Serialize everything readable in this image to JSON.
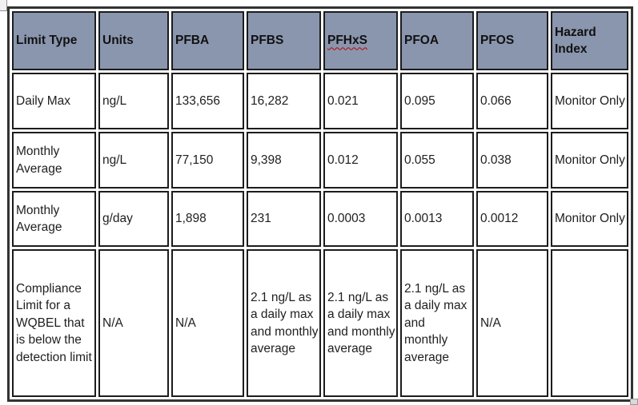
{
  "chart_data": {
    "type": "table",
    "title": "PFAS effluent limits table",
    "columns": [
      {
        "label": "Limit Type"
      },
      {
        "label": "Units"
      },
      {
        "label": "PFBA"
      },
      {
        "label": "PFBS"
      },
      {
        "label": "PFHxS",
        "spellcheck_underline": true
      },
      {
        "label": "PFOA"
      },
      {
        "label": "PFOS"
      },
      {
        "label": "Hazard Index"
      }
    ],
    "rows": [
      [
        "Daily Max",
        "ng/L",
        "133,656",
        "16,282",
        "0.021",
        "0.095",
        "0.066",
        "Monitor Only"
      ],
      [
        "Monthly Average",
        "ng/L",
        "77,150",
        "9,398",
        "0.012",
        "0.055",
        "0.038",
        "Monitor Only"
      ],
      [
        "Monthly Average",
        "g/day",
        "1,898",
        "231",
        "0.0003",
        "0.0013",
        "0.0012",
        "Monitor Only"
      ],
      [
        "Compliance Limit for a WQBEL that is below the detection limit",
        "N/A",
        "N/A",
        "2.1 ng/L as a daily max and monthly average",
        "2.1 ng/L as a daily max and monthly average",
        "2.1 ng/L as a daily max and monthly average",
        "N/A",
        ""
      ]
    ]
  },
  "colors": {
    "header_bg": "#8a96ae",
    "cell_border": "#1c1c1c",
    "outer_border": "#333333",
    "text": "#1f1f1f",
    "spellcheck_underline": "#c00000"
  }
}
